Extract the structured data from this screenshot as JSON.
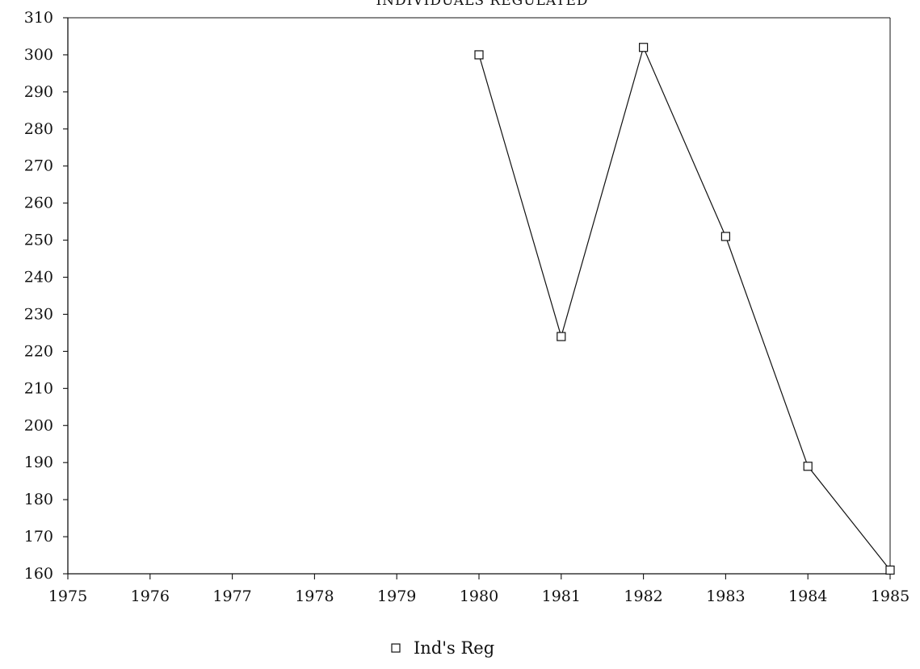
{
  "chart_data": {
    "type": "line",
    "title": "INDIVIDUALS REGULATED",
    "xlabel": "",
    "ylabel": "",
    "x_ticks": [
      "1975",
      "1976",
      "1977",
      "1978",
      "1979",
      "1980",
      "1981",
      "1982",
      "1983",
      "1984",
      "1985"
    ],
    "y_ticks": [
      "160",
      "170",
      "180",
      "190",
      "200",
      "210",
      "220",
      "230",
      "240",
      "250",
      "260",
      "270",
      "280",
      "290",
      "300",
      "310"
    ],
    "xlim": [
      1975,
      1985
    ],
    "ylim": [
      160,
      310
    ],
    "grid": false,
    "legend_position": "bottom-center",
    "series": [
      {
        "name": "Ind's Reg",
        "marker": "open-square",
        "color": "#111111",
        "x": [
          1980,
          1981,
          1982,
          1983,
          1984,
          1985
        ],
        "y": [
          300,
          224,
          302,
          251,
          189,
          161
        ]
      }
    ]
  }
}
